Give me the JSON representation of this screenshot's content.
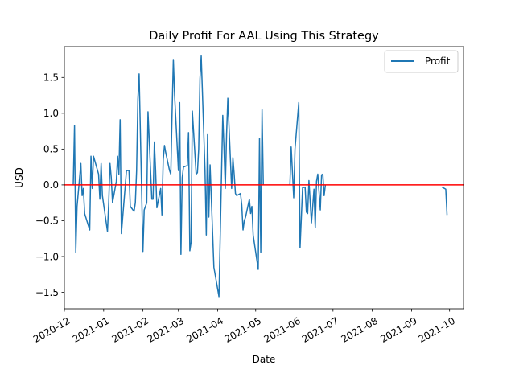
{
  "chart_data": {
    "type": "line",
    "title": "Daily Profit For AAL Using This Strategy",
    "xlabel": "Date",
    "ylabel": "USD",
    "xlim": [
      "2020-12-01",
      "2021-10-12"
    ],
    "ylim": [
      -1.73,
      1.93
    ],
    "x_ticks": [
      "2020-12",
      "2021-01",
      "2021-02",
      "2021-03",
      "2021-04",
      "2021-05",
      "2021-06",
      "2021-07",
      "2021-08",
      "2021-09",
      "2021-10"
    ],
    "y_ticks": [
      -1.5,
      -1.0,
      -0.5,
      0.0,
      0.5,
      1.0,
      1.5
    ],
    "y_tick_labels": [
      "−1.5",
      "−1.0",
      "−0.5",
      "0.0",
      "0.5",
      "1.0",
      "1.5"
    ],
    "legend": {
      "position": "top-right",
      "entries": [
        "Profit"
      ]
    },
    "reference_line": {
      "y": 0,
      "color": "#ff0000"
    },
    "series": [
      {
        "name": "Profit",
        "color": "#1f77b4",
        "segments": [
          [
            [
              "2020-12-08",
              0.0
            ],
            [
              "2020-12-09",
              0.83
            ],
            [
              "2020-12-10",
              -0.94
            ],
            [
              "2020-12-11",
              -0.3
            ],
            [
              "2020-12-14",
              0.3
            ],
            [
              "2020-12-15",
              -0.15
            ],
            [
              "2020-12-16",
              -0.05
            ],
            [
              "2020-12-17",
              -0.4
            ],
            [
              "2020-12-21",
              -0.63
            ],
            [
              "2020-12-22",
              0.4
            ],
            [
              "2020-12-23",
              -0.05
            ],
            [
              "2020-12-24",
              0.4
            ],
            [
              "2020-12-28",
              0.15
            ],
            [
              "2020-12-29",
              -0.2
            ],
            [
              "2020-12-30",
              0.3
            ],
            [
              "2020-12-31",
              -0.15
            ],
            [
              "2021-01-04",
              -0.65
            ],
            [
              "2021-01-05",
              -0.25
            ],
            [
              "2021-01-06",
              0.3
            ],
            [
              "2021-01-07",
              0.1
            ],
            [
              "2021-01-08",
              -0.25
            ],
            [
              "2021-01-11",
              0.05
            ],
            [
              "2021-01-12",
              0.4
            ],
            [
              "2021-01-13",
              0.15
            ],
            [
              "2021-01-14",
              0.91
            ],
            [
              "2021-01-15",
              -0.68
            ],
            [
              "2021-01-19",
              0.2
            ],
            [
              "2021-01-20",
              0.2
            ],
            [
              "2021-01-21",
              0.2
            ],
            [
              "2021-01-22",
              -0.3
            ],
            [
              "2021-01-25",
              -0.37
            ],
            [
              "2021-01-26",
              -0.25
            ],
            [
              "2021-01-27",
              0.2
            ],
            [
              "2021-01-28",
              1.2
            ],
            [
              "2021-01-29",
              1.55
            ],
            [
              "2021-02-01",
              -0.93
            ],
            [
              "2021-02-02",
              -0.35
            ],
            [
              "2021-02-03",
              -0.3
            ],
            [
              "2021-02-04",
              -0.25
            ],
            [
              "2021-02-05",
              1.02
            ],
            [
              "2021-02-08",
              -0.2
            ],
            [
              "2021-02-09",
              -0.2
            ],
            [
              "2021-02-10",
              0.6
            ],
            [
              "2021-02-11",
              0.2
            ],
            [
              "2021-02-12",
              -0.32
            ],
            [
              "2021-02-15",
              -0.05
            ],
            [
              "2021-02-16",
              -0.42
            ],
            [
              "2021-02-17",
              0.35
            ],
            [
              "2021-02-18",
              0.55
            ],
            [
              "2021-02-19",
              0.45
            ],
            [
              "2021-02-22",
              0.2
            ],
            [
              "2021-02-23",
              0.15
            ],
            [
              "2021-02-24",
              1.0
            ],
            [
              "2021-02-25",
              1.75
            ],
            [
              "2021-02-26",
              1.25
            ],
            [
              "2021-03-01",
              0.2
            ],
            [
              "2021-03-02",
              1.15
            ],
            [
              "2021-03-03",
              -0.97
            ],
            [
              "2021-03-04",
              0.1
            ],
            [
              "2021-03-05",
              0.25
            ],
            [
              "2021-03-08",
              0.27
            ],
            [
              "2021-03-09",
              0.73
            ],
            [
              "2021-03-10",
              -0.92
            ],
            [
              "2021-03-11",
              -0.8
            ],
            [
              "2021-03-12",
              1.03
            ],
            [
              "2021-03-15",
              0.15
            ],
            [
              "2021-03-16",
              0.17
            ],
            [
              "2021-03-17",
              0.5
            ],
            [
              "2021-03-18",
              1.48
            ],
            [
              "2021-03-19",
              1.8
            ],
            [
              "2021-03-22",
              0.2
            ],
            [
              "2021-03-23",
              -0.7
            ],
            [
              "2021-03-24",
              0.7
            ],
            [
              "2021-03-25",
              -0.45
            ],
            [
              "2021-03-26",
              0.28
            ],
            [
              "2021-03-29",
              -1.15
            ],
            [
              "2021-04-02",
              -1.56
            ],
            [
              "2021-04-05",
              0.97
            ],
            [
              "2021-04-06",
              0.5
            ],
            [
              "2021-04-07",
              -0.05
            ],
            [
              "2021-04-08",
              0.7
            ],
            [
              "2021-04-09",
              1.21
            ],
            [
              "2021-04-12",
              -0.05
            ],
            [
              "2021-04-13",
              0.38
            ],
            [
              "2021-04-14",
              0.15
            ],
            [
              "2021-04-15",
              -0.12
            ],
            [
              "2021-04-16",
              -0.15
            ],
            [
              "2021-04-19",
              -0.12
            ],
            [
              "2021-04-20",
              -0.28
            ],
            [
              "2021-04-21",
              -0.63
            ],
            [
              "2021-04-22",
              -0.5
            ],
            [
              "2021-04-23",
              -0.45
            ],
            [
              "2021-04-26",
              -0.2
            ],
            [
              "2021-04-27",
              -0.4
            ],
            [
              "2021-04-28",
              -0.3
            ],
            [
              "2021-04-29",
              -0.7
            ],
            [
              "2021-05-03",
              -1.18
            ],
            [
              "2021-05-04",
              0.65
            ],
            [
              "2021-05-05",
              -0.94
            ],
            [
              "2021-05-06",
              1.05
            ],
            [
              "2021-05-07",
              0.0
            ]
          ],
          [
            [
              "2021-05-28",
              0.0
            ],
            [
              "2021-05-29",
              0.53
            ],
            [
              "2021-05-31",
              -0.18
            ],
            [
              "2021-06-01",
              0.5
            ],
            [
              "2021-06-04",
              1.15
            ],
            [
              "2021-06-05",
              -0.88
            ],
            [
              "2021-06-07",
              -0.04
            ],
            [
              "2021-06-09",
              -0.03
            ],
            [
              "2021-06-10",
              -0.38
            ],
            [
              "2021-06-11",
              -0.4
            ],
            [
              "2021-06-12",
              0.06
            ],
            [
              "2021-06-14",
              -0.53
            ],
            [
              "2021-06-15",
              -0.3
            ],
            [
              "2021-06-16",
              -0.06
            ],
            [
              "2021-06-17",
              -0.6
            ],
            [
              "2021-06-18",
              0.05
            ],
            [
              "2021-06-19",
              0.15
            ],
            [
              "2021-06-20",
              -0.1
            ],
            [
              "2021-06-21",
              -0.35
            ],
            [
              "2021-06-22",
              0.14
            ],
            [
              "2021-06-23",
              0.15
            ],
            [
              "2021-06-24",
              -0.15
            ],
            [
              "2021-06-25",
              0.0
            ]
          ],
          [
            [
              "2021-09-25",
              -0.03
            ],
            [
              "2021-09-28",
              -0.06
            ],
            [
              "2021-09-29",
              -0.42
            ]
          ]
        ]
      }
    ]
  }
}
